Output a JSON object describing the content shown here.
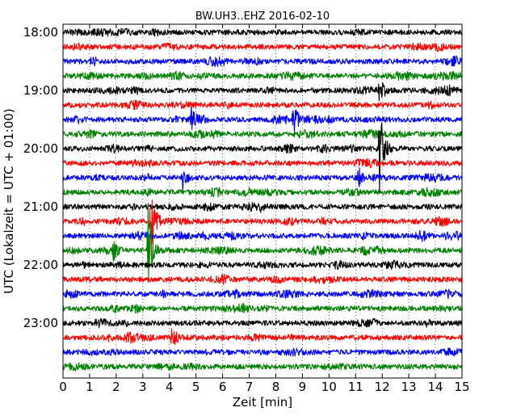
{
  "chart_data": {
    "type": "line",
    "title": "BW.UH3..EHZ 2016-02-10",
    "xlabel": "Zeit  [min]",
    "ylabel": "UTC (Lokalzeit = UTC + 01:00)",
    "xlim": [
      0,
      15
    ],
    "x_ticks": [
      "0",
      "1",
      "2",
      "3",
      "4",
      "5",
      "6",
      "7",
      "8",
      "9",
      "10",
      "11",
      "12",
      "13",
      "14",
      "15"
    ],
    "y_tick_labels": [
      "18:00",
      "19:00",
      "20:00",
      "21:00",
      "22:00",
      "23:00"
    ],
    "start_time": "18:00",
    "trace_interval_min": 15,
    "trace_count": 24,
    "trace_colors": [
      "#000000",
      "#ff0000",
      "#0000ff",
      "#008000"
    ],
    "grid": "vertical-dotted",
    "events": [
      {
        "row": 4,
        "time_min": 11.9,
        "amp": 1.3
      },
      {
        "row": 6,
        "time_min": 4.8,
        "amp": 0.9
      },
      {
        "row": 6,
        "time_min": 8.65,
        "amp": 1.4
      },
      {
        "row": 8,
        "time_min": 11.9,
        "amp": 3.6
      },
      {
        "row": 10,
        "time_min": 4.5,
        "amp": 0.8
      },
      {
        "row": 10,
        "time_min": 11.1,
        "amp": 0.9
      },
      {
        "row": 13,
        "time_min": 3.3,
        "amp": 3.2
      },
      {
        "row": 15,
        "time_min": 3.2,
        "amp": 4.5
      },
      {
        "row": 15,
        "time_min": 1.9,
        "amp": 1.0
      },
      {
        "row": 21,
        "time_min": 4.1,
        "amp": 1.0
      }
    ]
  }
}
